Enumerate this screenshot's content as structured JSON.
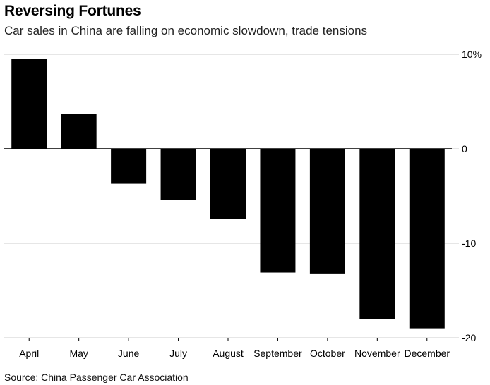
{
  "header": {
    "title": "Reversing Fortunes",
    "subtitle": "Car sales in China are falling on economic slowdown, trade tensions"
  },
  "footer": {
    "source": "Source: China Passenger Car Association"
  },
  "chart_data": {
    "type": "bar",
    "title": "Reversing Fortunes",
    "subtitle": "Car sales in China are falling on economic slowdown, trade tensions",
    "categories": [
      "April",
      "May",
      "June",
      "July",
      "August",
      "September",
      "October",
      "November",
      "December"
    ],
    "values": [
      9.5,
      3.7,
      -3.7,
      -5.4,
      -7.4,
      -13.1,
      -13.2,
      -18.0,
      -19.0
    ],
    "ylim": [
      -20,
      10
    ],
    "yticks": [
      10,
      0,
      -10,
      -20
    ],
    "ytick_labels": [
      "10%",
      "0",
      "-10",
      "-20"
    ],
    "xlabel": "",
    "ylabel": "",
    "y_axis_side": "right",
    "grid": true,
    "bar_color": "#000000",
    "grid_color": "#cccccc",
    "source": "Source: China Passenger Car Association"
  }
}
